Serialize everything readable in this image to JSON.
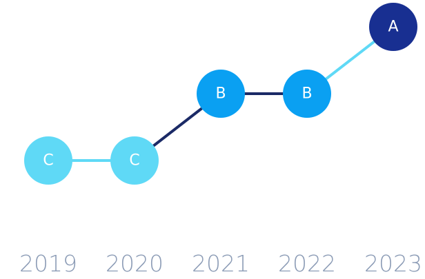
{
  "chart_data": {
    "type": "rating-progression",
    "categories": [
      "2019",
      "2020",
      "2021",
      "2022",
      "2023"
    ],
    "ratings": [
      "C",
      "C",
      "B",
      "B",
      "A"
    ],
    "scale": [
      "C",
      "B",
      "A"
    ],
    "scale_colors": [
      "#5fd9f6",
      "#0aa0f2",
      "#182f91"
    ],
    "segment_colors": [
      "#5fd9f6",
      "#1b2a66",
      "#1b2a66",
      "#5fd9f6"
    ]
  }
}
